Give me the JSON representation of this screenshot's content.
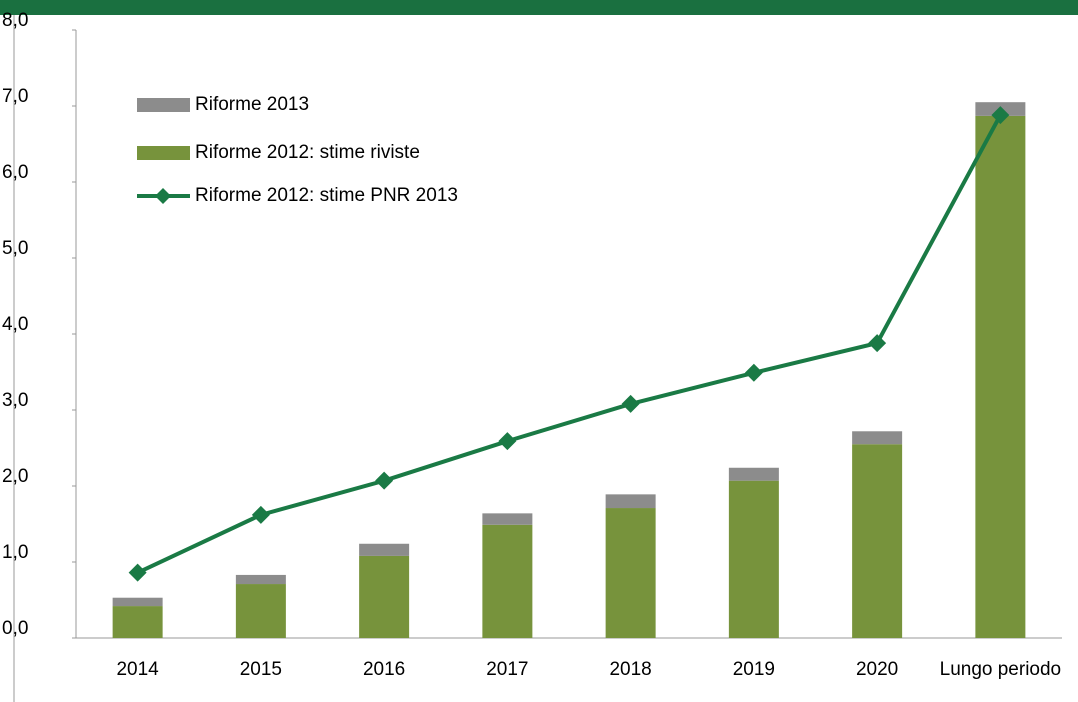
{
  "chart_data": {
    "type": "bar_line",
    "categories": [
      "2014",
      "2015",
      "2016",
      "2017",
      "2018",
      "2019",
      "2020",
      "Lungo periodo"
    ],
    "series": [
      {
        "name": "Riforme 2012: stime riviste",
        "color": "#77933c",
        "kind": "bar",
        "values": [
          0.42,
          0.71,
          1.08,
          1.49,
          1.71,
          2.07,
          2.55,
          6.87
        ]
      },
      {
        "name": "Riforme 2013",
        "color": "#8c8c8c",
        "kind": "bar",
        "values": [
          0.11,
          0.12,
          0.16,
          0.15,
          0.18,
          0.17,
          0.17,
          0.18
        ]
      },
      {
        "name": "Riforme 2012: stime PNR 2013",
        "color": "#1a7a45",
        "kind": "line",
        "values": [
          0.86,
          1.62,
          2.07,
          2.59,
          3.08,
          3.49,
          3.88,
          6.88
        ]
      }
    ],
    "ylim": [
      0,
      8
    ],
    "yticks": [
      {
        "value": 0,
        "label": "0,0"
      },
      {
        "value": 1,
        "label": "1,0"
      },
      {
        "value": 2,
        "label": "2,0"
      },
      {
        "value": 3,
        "label": "3,0"
      },
      {
        "value": 4,
        "label": "4,0"
      },
      {
        "value": 5,
        "label": "5,0"
      },
      {
        "value": 6,
        "label": "6,0"
      },
      {
        "value": 7,
        "label": "7,0"
      },
      {
        "value": 8,
        "label": "8,0"
      }
    ]
  }
}
